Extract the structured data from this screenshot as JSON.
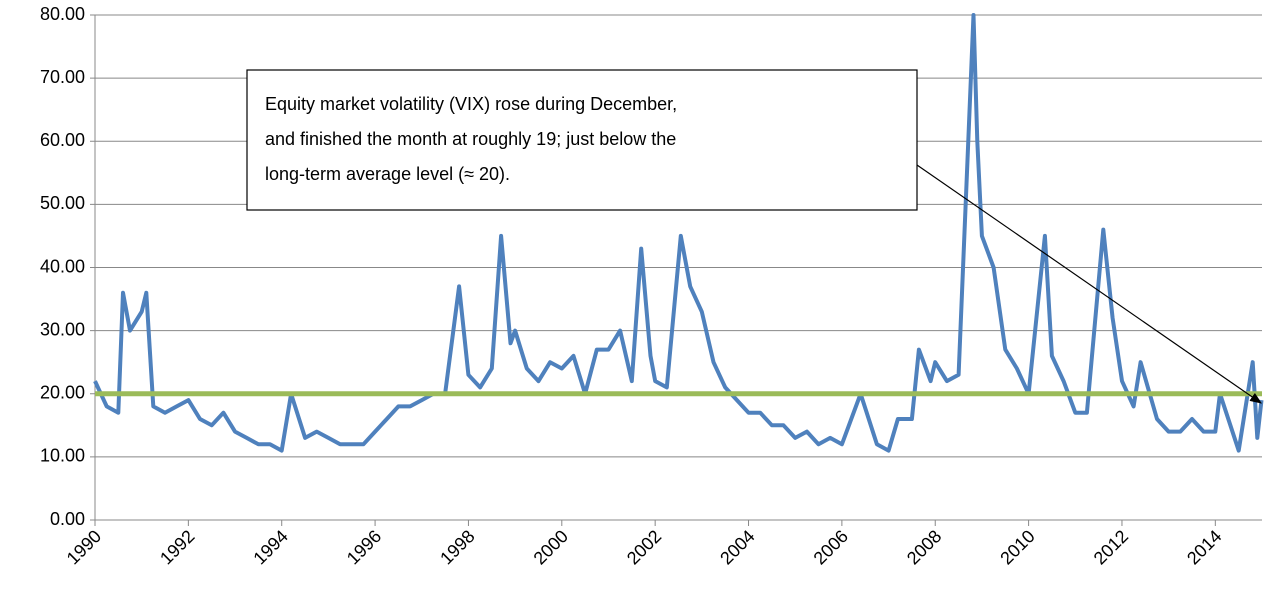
{
  "chart_data": {
    "type": "line",
    "annotation": [
      "Equity market volatility (VIX) rose during December,",
      "and finished the month at roughly 19; just below the",
      "long-term average level  (≈ 20)."
    ],
    "x": [
      1990.0,
      1990.25,
      1990.5,
      1990.6,
      1990.75,
      1991.0,
      1991.1,
      1991.25,
      1991.5,
      1991.75,
      1992.0,
      1992.25,
      1992.5,
      1992.75,
      1993.0,
      1993.25,
      1993.5,
      1993.75,
      1994.0,
      1994.2,
      1994.5,
      1994.75,
      1995.0,
      1995.25,
      1995.5,
      1995.75,
      1996.0,
      1996.25,
      1996.5,
      1996.75,
      1997.0,
      1997.25,
      1997.5,
      1997.8,
      1998.0,
      1998.25,
      1998.5,
      1998.7,
      1998.9,
      1999.0,
      1999.25,
      1999.5,
      1999.75,
      2000.0,
      2000.25,
      2000.5,
      2000.75,
      2001.0,
      2001.25,
      2001.5,
      2001.7,
      2001.9,
      2002.0,
      2002.25,
      2002.55,
      2002.75,
      2003.0,
      2003.25,
      2003.5,
      2003.75,
      2004.0,
      2004.25,
      2004.5,
      2004.75,
      2005.0,
      2005.25,
      2005.5,
      2005.75,
      2006.0,
      2006.4,
      2006.75,
      2007.0,
      2007.2,
      2007.5,
      2007.65,
      2007.9,
      2008.0,
      2008.25,
      2008.5,
      2008.82,
      2008.9,
      2009.0,
      2009.25,
      2009.5,
      2009.75,
      2010.0,
      2010.35,
      2010.5,
      2010.75,
      2011.0,
      2011.25,
      2011.6,
      2011.8,
      2012.0,
      2012.25,
      2012.4,
      2012.75,
      2013.0,
      2013.25,
      2013.5,
      2013.75,
      2014.0,
      2014.1,
      2014.5,
      2014.8,
      2014.9,
      2014.99
    ],
    "series": [
      {
        "color": "#4f81bd",
        "values": [
          22,
          18,
          17,
          36,
          30,
          33,
          36,
          18,
          17,
          18,
          19,
          16,
          15,
          17,
          14,
          13,
          12,
          12,
          11,
          20,
          13,
          14,
          13,
          12,
          12,
          12,
          14,
          16,
          18,
          18,
          19,
          20,
          20,
          37,
          23,
          21,
          24,
          45,
          28,
          30,
          24,
          22,
          25,
          24,
          26,
          20,
          27,
          27,
          30,
          22,
          43,
          26,
          22,
          21,
          45,
          37,
          33,
          25,
          21,
          19,
          17,
          17,
          15,
          15,
          13,
          14,
          12,
          13,
          12,
          20,
          12,
          11,
          16,
          16,
          27,
          22,
          25,
          22,
          23,
          80,
          60,
          45,
          40,
          27,
          24,
          20,
          45,
          26,
          22,
          17,
          17,
          46,
          32,
          22,
          18,
          25,
          16,
          14,
          14,
          16,
          14,
          14,
          20,
          11,
          25,
          13,
          19
        ]
      }
    ],
    "reference_line": {
      "value": 20,
      "color": "#9bbb59"
    },
    "xlim": [
      1990,
      2015
    ],
    "xticks": [
      1990,
      1992,
      1994,
      1996,
      1998,
      2000,
      2002,
      2004,
      2006,
      2008,
      2010,
      2012,
      2014
    ],
    "ylim": [
      0,
      80
    ],
    "yticks": [
      {
        "value": 0,
        "label": "0.00"
      },
      {
        "value": 10,
        "label": "10.00"
      },
      {
        "value": 20,
        "label": "20.00"
      },
      {
        "value": 30,
        "label": "30.00"
      },
      {
        "value": 40,
        "label": "40.00"
      },
      {
        "value": 50,
        "label": "50.00"
      },
      {
        "value": 60,
        "label": "60.00"
      },
      {
        "value": 70,
        "label": "70.00"
      },
      {
        "value": 80,
        "label": "80.00"
      }
    ],
    "grid": true
  }
}
